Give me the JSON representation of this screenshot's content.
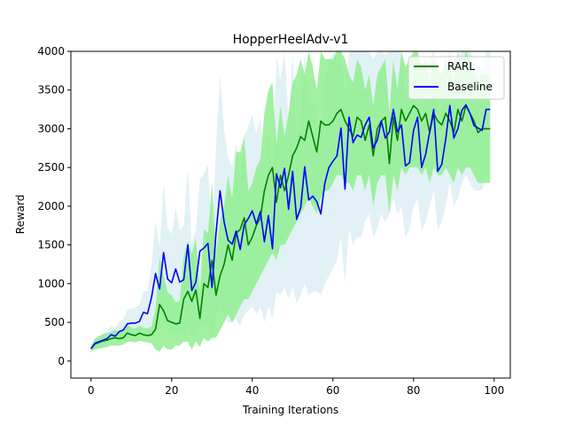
{
  "chart_data": {
    "type": "line",
    "title": "HopperHeelAdv-v1",
    "xlabel": "Training Iterations",
    "ylabel": "Reward",
    "xlim": [
      -5,
      104
    ],
    "ylim": [
      -220,
      4000
    ],
    "xticks": [
      0,
      20,
      40,
      60,
      80,
      100
    ],
    "yticks": [
      0,
      500,
      1000,
      1500,
      2000,
      2500,
      3000,
      3500,
      4000
    ],
    "grid": false,
    "legend_position": "top-right",
    "x": [
      0,
      1,
      2,
      3,
      4,
      5,
      6,
      7,
      8,
      9,
      10,
      11,
      12,
      13,
      14,
      15,
      16,
      17,
      18,
      19,
      20,
      21,
      22,
      23,
      24,
      25,
      26,
      27,
      28,
      29,
      30,
      31,
      32,
      33,
      34,
      35,
      36,
      37,
      38,
      39,
      40,
      41,
      42,
      43,
      44,
      45,
      46,
      47,
      48,
      49,
      50,
      51,
      52,
      53,
      54,
      55,
      56,
      57,
      58,
      59,
      60,
      61,
      62,
      63,
      64,
      65,
      66,
      67,
      68,
      69,
      70,
      71,
      72,
      73,
      74,
      75,
      76,
      77,
      78,
      79,
      80,
      81,
      82,
      83,
      84,
      85,
      86,
      87,
      88,
      89,
      90,
      91,
      92,
      93,
      94,
      95,
      96,
      97,
      98,
      99
    ],
    "series": [
      {
        "name": "RARL",
        "color": "#008000",
        "band_color": "#90ee90",
        "values": [
          160,
          220,
          240,
          260,
          270,
          290,
          300,
          290,
          300,
          360,
          340,
          330,
          360,
          340,
          330,
          340,
          410,
          730,
          650,
          520,
          500,
          480,
          490,
          800,
          900,
          770,
          920,
          550,
          1000,
          950,
          1300,
          850,
          1100,
          1250,
          1500,
          1300,
          1650,
          1700,
          1850,
          1500,
          1600,
          1750,
          1850,
          2200,
          2400,
          2500,
          2050,
          2400,
          2200,
          2400,
          2650,
          2750,
          2900,
          2850,
          3100,
          2900,
          2700,
          3100,
          3050,
          3050,
          3100,
          3200,
          3250,
          3100,
          3000,
          2900,
          3150,
          3100,
          2850,
          3050,
          2650,
          3000,
          3100,
          3150,
          2550,
          3150,
          2850,
          3250,
          3100,
          3200,
          3300,
          3250,
          3100,
          3200,
          2950,
          3200,
          3100,
          3050,
          3200,
          3100,
          2950,
          3250,
          3100,
          3300,
          3200,
          3100,
          2950,
          3000,
          3000,
          3000
        ],
        "lower": [
          120,
          150,
          160,
          170,
          180,
          200,
          200,
          200,
          210,
          250,
          250,
          240,
          260,
          250,
          240,
          230,
          150,
          120,
          200,
          150,
          150,
          200,
          200,
          250,
          250,
          150,
          250,
          180,
          300,
          250,
          300,
          300,
          400,
          500,
          600,
          500,
          600,
          700,
          800,
          800,
          900,
          1000,
          1100,
          1200,
          1300,
          1400,
          1300,
          1500,
          1500,
          1600,
          1700,
          1800,
          1900,
          2000,
          2100,
          2000,
          1900,
          2100,
          2200,
          2200,
          2300,
          2400,
          2400,
          2300,
          2300,
          2200,
          2400,
          2400,
          2200,
          2400,
          2000,
          2300,
          2400,
          2400,
          1900,
          2400,
          2200,
          2500,
          2400,
          2500,
          2500,
          2500,
          2400,
          2500,
          2300,
          2500,
          2400,
          2400,
          2500,
          2400,
          2300,
          2500,
          2400,
          2500,
          2500,
          2400,
          2300,
          2300,
          2300,
          2300
        ],
        "upper": [
          200,
          290,
          320,
          350,
          360,
          380,
          400,
          380,
          390,
          470,
          430,
          420,
          460,
          430,
          420,
          450,
          670,
          1340,
          1100,
          890,
          850,
          760,
          780,
          1350,
          1550,
          1390,
          1590,
          920,
          1700,
          1650,
          2300,
          1400,
          1800,
          2000,
          2400,
          2100,
          2700,
          2700,
          2900,
          2200,
          2300,
          2500,
          2600,
          3200,
          3500,
          3600,
          2800,
          3300,
          2900,
          3200,
          3600,
          3700,
          3900,
          3700,
          4000,
          3800,
          3500,
          4000,
          3900,
          3900,
          3900,
          4000,
          4000,
          3900,
          3700,
          3600,
          3900,
          3800,
          3500,
          3700,
          3300,
          3700,
          3800,
          3900,
          3200,
          3900,
          3500,
          4000,
          3800,
          3900,
          4000,
          4000,
          3800,
          3900,
          3600,
          3900,
          3800,
          3700,
          3900,
          3800,
          3600,
          4000,
          3800,
          4000,
          3900,
          3800,
          3600,
          3700,
          3700,
          3700
        ]
      },
      {
        "name": "Baseline",
        "color": "#0000ff",
        "band_color": "#add8e6",
        "values": [
          160,
          230,
          250,
          270,
          290,
          340,
          320,
          380,
          400,
          480,
          490,
          490,
          510,
          630,
          610,
          820,
          1130,
          930,
          1400,
          1060,
          1010,
          1190,
          1020,
          1050,
          1500,
          910,
          1020,
          1420,
          1460,
          1520,
          950,
          1650,
          2200,
          1800,
          1560,
          1510,
          1680,
          1440,
          1760,
          1840,
          1940,
          1770,
          1930,
          1540,
          1880,
          1450,
          2420,
          2240,
          2490,
          1960,
          2450,
          1830,
          1980,
          2510,
          2080,
          2130,
          2060,
          1900,
          2300,
          2500,
          2580,
          2650,
          3010,
          2220,
          3150,
          2820,
          2920,
          2890,
          3050,
          3150,
          2750,
          2850,
          3100,
          2880,
          2960,
          3250,
          2960,
          3050,
          2520,
          2560,
          2980,
          3150,
          2500,
          2670,
          2960,
          3250,
          2450,
          2540,
          2870,
          3300,
          2880,
          3000,
          3240,
          3310,
          3200,
          3040,
          3010,
          2980,
          3250,
          3250
        ],
        "lower": [
          120,
          170,
          180,
          190,
          200,
          230,
          210,
          250,
          260,
          300,
          300,
          290,
          300,
          350,
          320,
          400,
          450,
          400,
          500,
          400,
          380,
          400,
          350,
          350,
          500,
          300,
          350,
          500,
          500,
          500,
          300,
          550,
          700,
          600,
          500,
          500,
          550,
          450,
          600,
          650,
          700,
          600,
          700,
          500,
          700,
          550,
          900,
          850,
          950,
          800,
          950,
          750,
          850,
          1000,
          850,
          900,
          900,
          850,
          1000,
          1100,
          1200,
          1300,
          1600,
          1000,
          1700,
          1500,
          1600,
          1600,
          1800,
          1900,
          1600,
          1700,
          1900,
          1800,
          1900,
          2100,
          1900,
          2000,
          1600,
          1700,
          2000,
          2100,
          1700,
          1800,
          2000,
          2200,
          1700,
          1800,
          2000,
          2300,
          2000,
          2100,
          2300,
          2400,
          2300,
          2200,
          2200,
          2200,
          2400,
          2400
        ],
        "upper": [
          200,
          290,
          320,
          350,
          380,
          450,
          430,
          510,
          540,
          660,
          680,
          690,
          720,
          910,
          900,
          1240,
          1810,
          1460,
          2300,
          1720,
          1640,
          1980,
          1690,
          1750,
          2500,
          1520,
          1690,
          2340,
          2420,
          2540,
          1600,
          2750,
          3700,
          3000,
          2620,
          2520,
          2810,
          2430,
          2920,
          3030,
          3180,
          2940,
          3160,
          2580,
          3060,
          2350,
          3940,
          3630,
          4000,
          3120,
          3950,
          2910,
          3110,
          4000,
          3310,
          3360,
          3220,
          2950,
          3600,
          3900,
          3960,
          4000,
          4000,
          3440,
          4000,
          4000,
          4000,
          4000,
          4000,
          4000,
          3900,
          4000,
          4000,
          3960,
          4000,
          4000,
          4000,
          4000,
          3440,
          3420,
          3960,
          4000,
          3300,
          3540,
          3920,
          4000,
          3200,
          3280,
          3740,
          4000,
          3760,
          3900,
          4000,
          4000,
          4000,
          3880,
          3820,
          3760,
          4000,
          4000
        ]
      }
    ]
  }
}
